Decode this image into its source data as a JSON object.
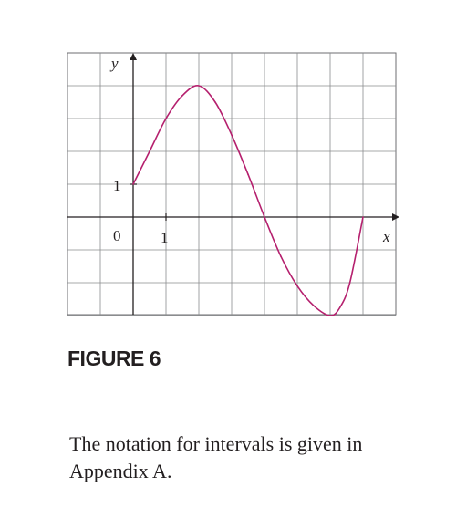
{
  "chart_data": {
    "type": "line",
    "xlabel": "x",
    "ylabel": "y",
    "xlim": [
      -2,
      8
    ],
    "ylim": [
      -3,
      5
    ],
    "grid": true,
    "tick_labels": {
      "origin": "0",
      "x_one": "1",
      "y_one": "1"
    },
    "series": [
      {
        "color": "#b5206e",
        "x": [
          0,
          0.5,
          1,
          1.5,
          2,
          2.5,
          3,
          3.5,
          4,
          4.5,
          5,
          5.5,
          6,
          6.3,
          6.6,
          7
        ],
        "y": [
          1,
          2.0,
          3.0,
          3.7,
          4.0,
          3.5,
          2.5,
          1.3,
          0,
          -1.2,
          -2.1,
          -2.7,
          -3.0,
          -2.75,
          -2.0,
          0
        ]
      }
    ]
  },
  "caption": "FIGURE 6",
  "body_text": "The notation for intervals is given in Appendix A."
}
